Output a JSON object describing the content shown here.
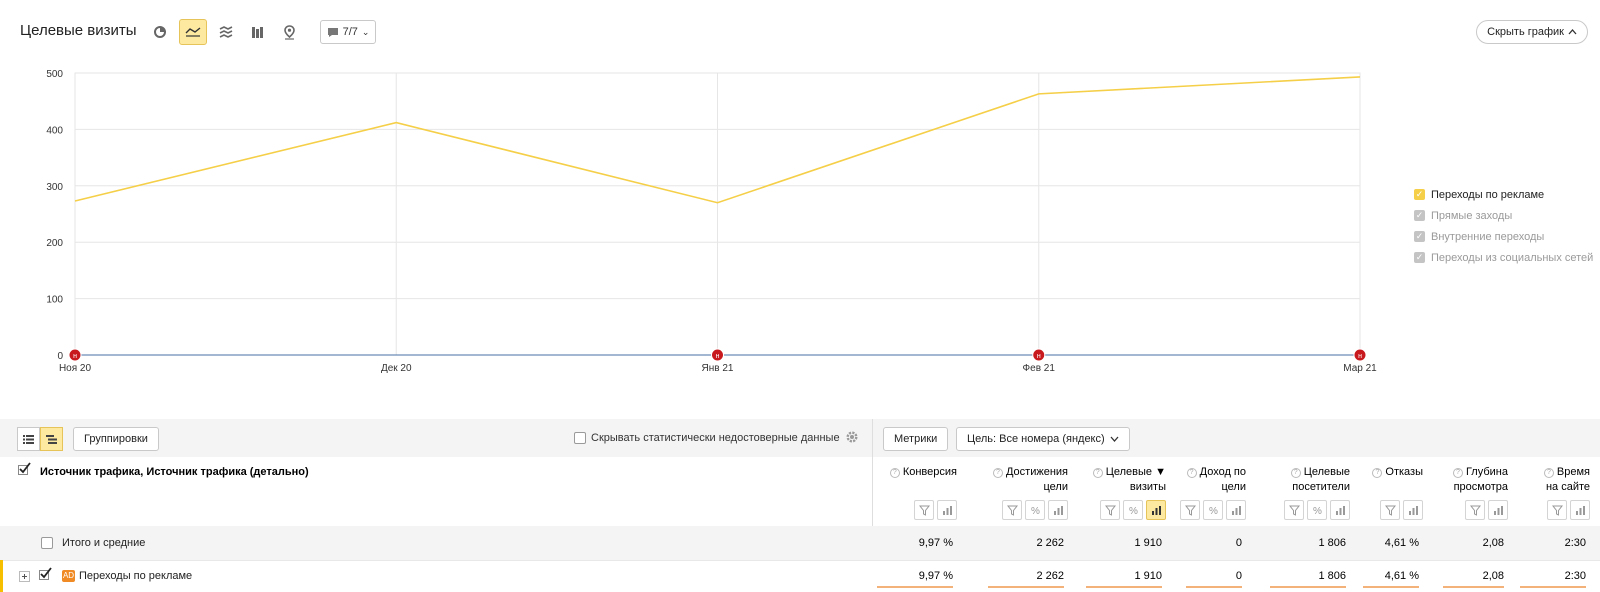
{
  "header": {
    "title": "Целевые визиты",
    "segment_label": "7/7",
    "hide_chart_label": "Скрыть график"
  },
  "chart_data": {
    "type": "line",
    "categories": [
      "Ноя 20",
      "Дек 20",
      "Янв 21",
      "Фев 21",
      "Мар 21"
    ],
    "series": [
      {
        "name": "Переходы по рекламе",
        "values": [
          273,
          412,
          270,
          463,
          493
        ],
        "color": "#f5cf48"
      }
    ],
    "yticks": [
      0,
      100,
      200,
      300,
      400,
      500
    ],
    "ylim": [
      0,
      500
    ],
    "grid": true,
    "legend_position": "right",
    "annotations": [
      {
        "x": "Ноя 20",
        "label": "н"
      },
      {
        "x": "Янв 21",
        "label": "н"
      },
      {
        "x": "Фев 21",
        "label": "н"
      },
      {
        "x": "Мар 21",
        "label": "н"
      }
    ]
  },
  "legend": [
    {
      "label": "Переходы по рекламе",
      "checked": true,
      "color": "#f5cf48",
      "muted": false
    },
    {
      "label": "Прямые заходы",
      "checked": true,
      "color": "#c4c4c4",
      "muted": true
    },
    {
      "label": "Внутренние переходы",
      "checked": true,
      "color": "#c4c4c4",
      "muted": true
    },
    {
      "label": "Переходы из социальных сетей",
      "checked": true,
      "color": "#c4c4c4",
      "muted": true
    }
  ],
  "toolbar": {
    "groupings_label": "Группировки",
    "hide_unreliable_label": "Скрывать статистически недостоверные данные",
    "metrics_label": "Метрики",
    "goal_label": "Цель: Все номера (яндекс)"
  },
  "table": {
    "dimension_header": "Источник трафика, Источник трафика (детально)",
    "columns": [
      {
        "line1": "Конверсия",
        "line2": ""
      },
      {
        "line1": "Достижения",
        "line2": "цели"
      },
      {
        "line1": "Целевые ▼",
        "line2": "визиты"
      },
      {
        "line1": "Доход по",
        "line2": "цели"
      },
      {
        "line1": "Целевые",
        "line2": "посетители"
      },
      {
        "line1": "Отказы",
        "line2": ""
      },
      {
        "line1": "Глубина",
        "line2": "просмотра"
      },
      {
        "line1": "Время",
        "line2": "на сайте"
      }
    ],
    "total_row": {
      "label": "Итого и средние",
      "values": [
        "9,97 %",
        "2 262",
        "1 910",
        "0",
        "1 806",
        "4,61 %",
        "2,08",
        "2:30"
      ]
    },
    "rows": [
      {
        "badge": "AD",
        "label": "Переходы по рекламе",
        "values": [
          "9,97 %",
          "2 262",
          "1 910",
          "0",
          "1 806",
          "4,61 %",
          "2,08",
          "2:30"
        ]
      }
    ]
  }
}
